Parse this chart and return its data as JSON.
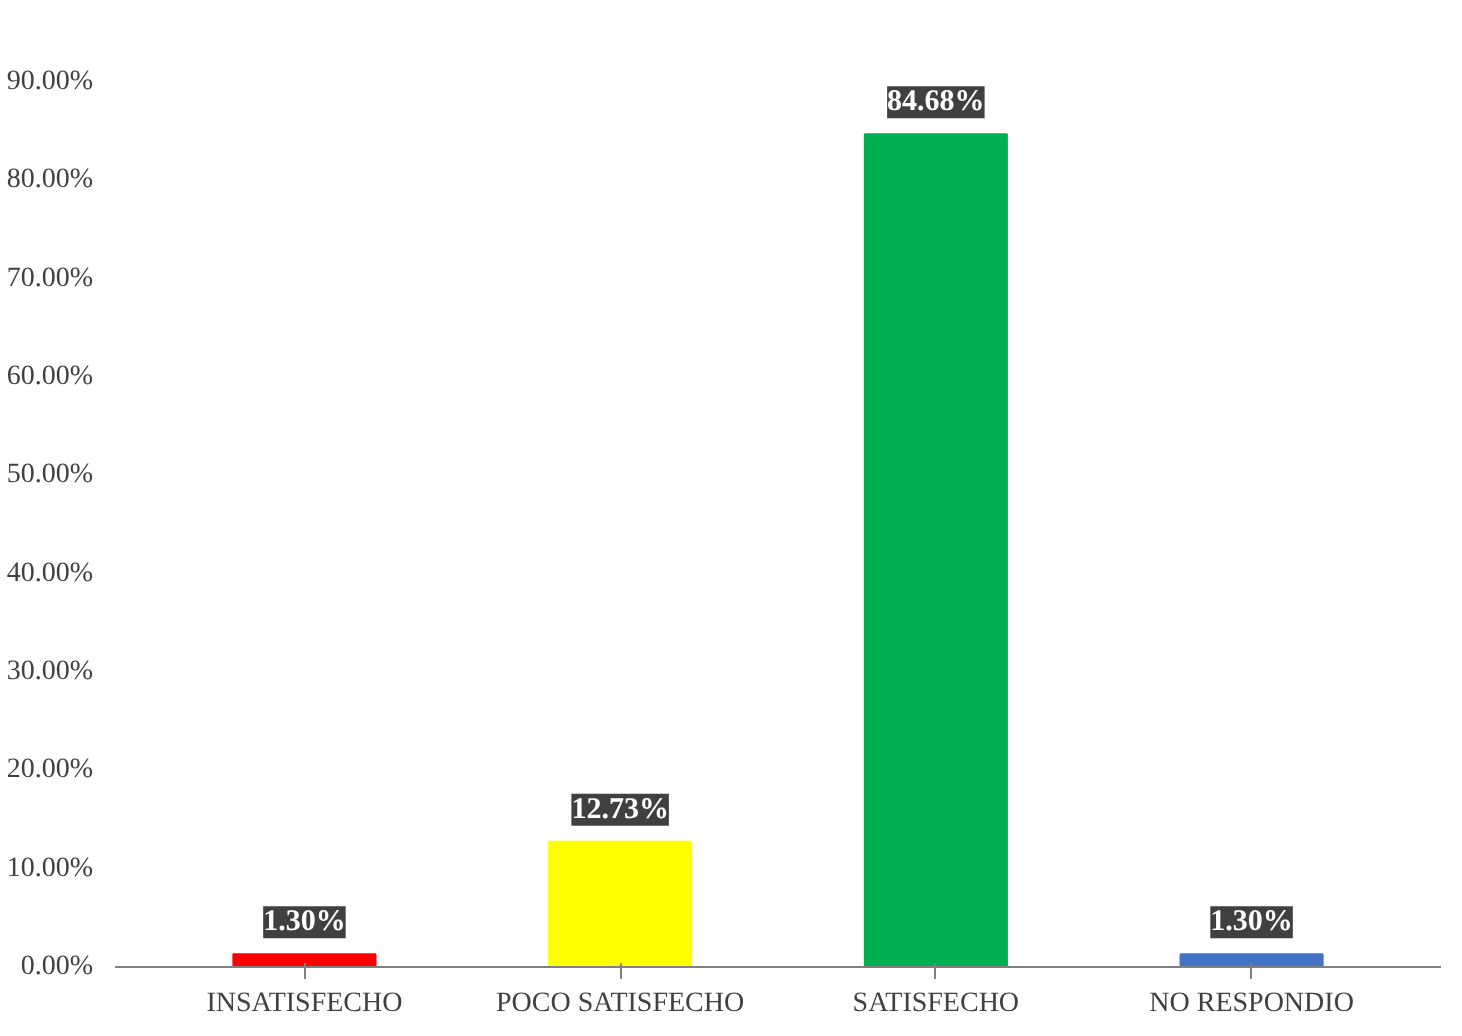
{
  "chart_data": {
    "type": "bar",
    "categories": [
      "INSATISFECHO",
      "POCO SATISFECHO",
      "SATISFECHO",
      "NO RESPONDIO"
    ],
    "values": [
      1.3,
      12.73,
      84.68,
      1.3
    ],
    "colors": [
      "#ff0000",
      "#ffff00",
      "#00b050",
      "#4472c4"
    ],
    "value_labels": [
      "1.30%",
      "12.73%",
      "84.68%",
      "1.30%"
    ],
    "ylim": [
      0,
      90
    ],
    "yticks": [
      {
        "value": 0,
        "label": "0.00%"
      },
      {
        "value": 10,
        "label": "10.00%"
      },
      {
        "value": 20,
        "label": "20.00%"
      },
      {
        "value": 30,
        "label": "30.00%"
      },
      {
        "value": 40,
        "label": "40.00%"
      },
      {
        "value": 50,
        "label": "50.00%"
      },
      {
        "value": 60,
        "label": "60.00%"
      },
      {
        "value": 70,
        "label": "70.00%"
      },
      {
        "value": 80,
        "label": "80.00%"
      },
      {
        "value": 90,
        "label": "90.00%"
      }
    ],
    "grid": false
  }
}
